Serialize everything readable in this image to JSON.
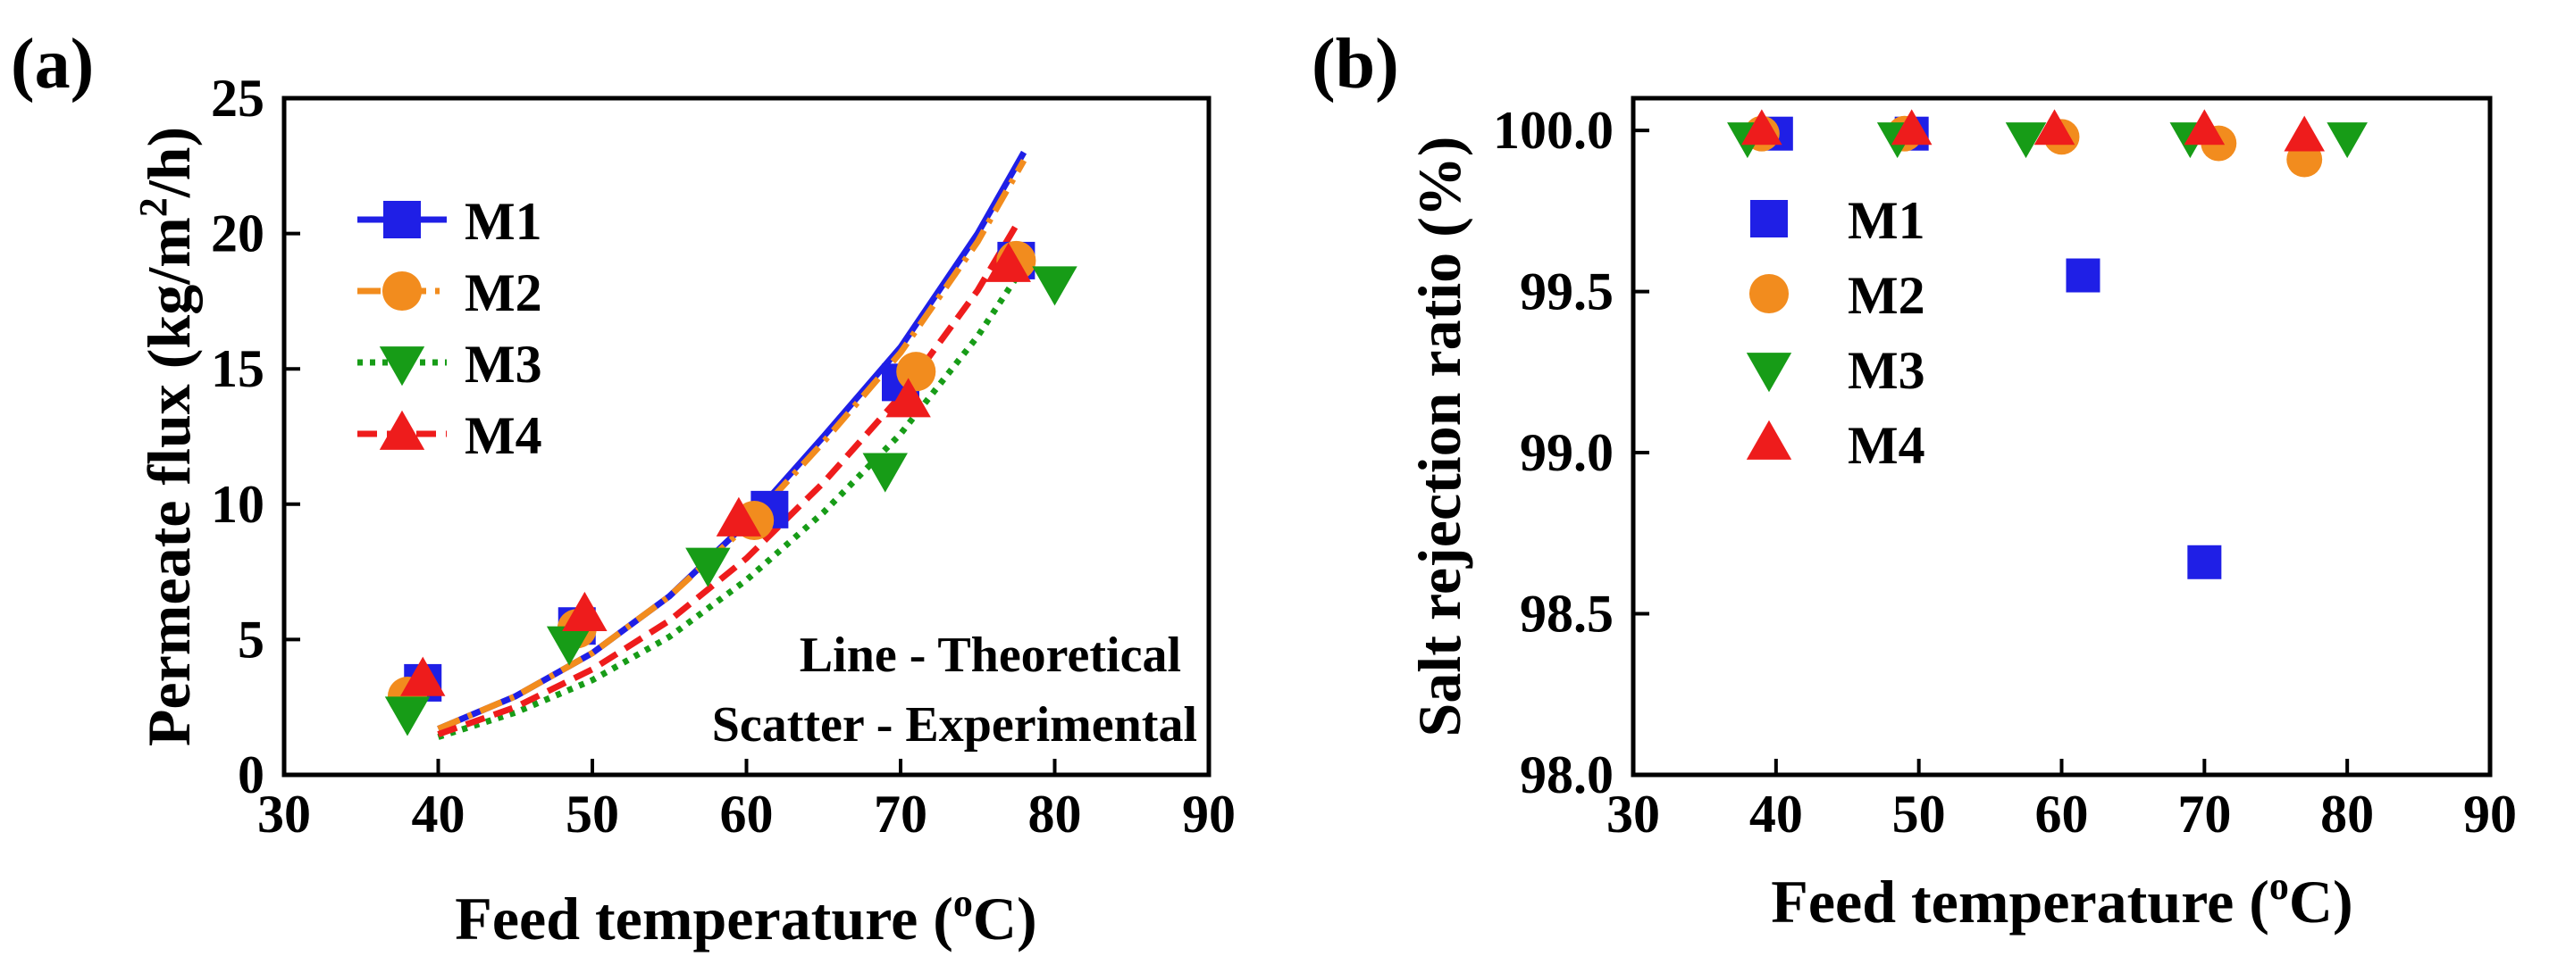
{
  "chart_data": [
    {
      "panel_label": "(a)",
      "type": "line+scatter",
      "title": "",
      "xlabel": "Feed temperature (",
      "xlabel_sup": "o",
      "xlabel_tail": "C)",
      "ylabel": "Permeate flux (kg/m",
      "ylabel_sup": "2",
      "ylabel_tail": "/h)",
      "xlim": [
        30,
        90
      ],
      "ylim": [
        0,
        25
      ],
      "xticks": [
        "30",
        "40",
        "50",
        "60",
        "70",
        "80",
        "90"
      ],
      "yticks": [
        "0",
        "5",
        "10",
        "15",
        "20",
        "25"
      ],
      "grid": false,
      "legend_position": "top-left",
      "annotations": [
        "Line - Theoretical",
        "Scatter - Experimental"
      ],
      "series": [
        {
          "name": "M1",
          "color": "#1f1fe6",
          "marker": "square",
          "line_style": "solid",
          "theory_x": [
            40,
            45,
            50,
            55,
            60,
            65,
            70,
            75,
            78
          ],
          "theory_y": [
            1.7,
            2.9,
            4.5,
            6.6,
            9.3,
            12.5,
            15.8,
            20.0,
            23.0
          ],
          "experimental": [
            [
              39,
              3.4
            ],
            [
              49,
              5.5
            ],
            [
              61.5,
              9.8
            ],
            [
              70,
              14.5
            ],
            [
              77.5,
              19.0
            ]
          ]
        },
        {
          "name": "M2",
          "color": "#f28c1e",
          "marker": "circle",
          "line_style": "dash-dot",
          "theory_x": [
            40,
            45,
            50,
            55,
            60,
            65,
            70,
            75,
            78
          ],
          "theory_y": [
            1.7,
            2.9,
            4.5,
            6.6,
            9.2,
            12.3,
            15.6,
            19.7,
            22.7
          ],
          "experimental": [
            [
              38,
              2.9
            ],
            [
              49,
              5.4
            ],
            [
              60.5,
              9.4
            ],
            [
              71,
              14.9
            ],
            [
              77.5,
              19.0
            ]
          ]
        },
        {
          "name": "M3",
          "color": "#179c17",
          "marker": "triangle-down",
          "line_style": "dotted",
          "theory_x": [
            40,
            45,
            50,
            55,
            60,
            65,
            70,
            75,
            78
          ],
          "theory_y": [
            1.4,
            2.3,
            3.5,
            5.1,
            7.2,
            9.7,
            12.6,
            16.2,
            18.8
          ],
          "experimental": [
            [
              38,
              2.3
            ],
            [
              48.5,
              4.9
            ],
            [
              57.5,
              7.8
            ],
            [
              69,
              11.3
            ],
            [
              80,
              18.2
            ]
          ]
        },
        {
          "name": "M4",
          "color": "#ee1c1c",
          "marker": "triangle-up",
          "line_style": "dashed",
          "theory_x": [
            40,
            45,
            50,
            55,
            60,
            65,
            70,
            75,
            77.5
          ],
          "theory_y": [
            1.5,
            2.5,
            3.9,
            5.7,
            8.0,
            10.8,
            14.0,
            17.9,
            20.3
          ],
          "experimental": [
            [
              39,
              3.5
            ],
            [
              49.5,
              5.9
            ],
            [
              59.5,
              9.4
            ],
            [
              70.5,
              13.8
            ],
            [
              77,
              18.8
            ]
          ]
        }
      ]
    },
    {
      "panel_label": "(b)",
      "type": "scatter",
      "title": "",
      "xlabel": "Feed temperature (",
      "xlabel_sup": "o",
      "xlabel_tail": "C)",
      "ylabel": "Salt rejection ratio (%)",
      "xlim": [
        30,
        90
      ],
      "ylim": [
        98.0,
        100.1
      ],
      "xticks": [
        "30",
        "40",
        "50",
        "60",
        "70",
        "80",
        "90"
      ],
      "yticks": [
        "98.0",
        "98.5",
        "99.0",
        "99.5",
        "100.0"
      ],
      "grid": false,
      "legend_position": "left",
      "series": [
        {
          "name": "M1",
          "color": "#1f1fe6",
          "marker": "square",
          "points": [
            [
              40,
              99.99
            ],
            [
              49.5,
              99.99
            ],
            [
              61.5,
              99.55
            ],
            [
              70,
              98.66
            ]
          ]
        },
        {
          "name": "M2",
          "color": "#f28c1e",
          "marker": "circle",
          "points": [
            [
              39,
              99.99
            ],
            [
              49,
              99.99
            ],
            [
              60,
              99.98
            ],
            [
              71,
              99.96
            ],
            [
              77,
              99.91
            ]
          ]
        },
        {
          "name": "M3",
          "color": "#179c17",
          "marker": "triangle-down",
          "points": [
            [
              38,
              99.98
            ],
            [
              48.5,
              99.98
            ],
            [
              57.5,
              99.98
            ],
            [
              69,
              99.98
            ],
            [
              80,
              99.98
            ]
          ]
        },
        {
          "name": "M4",
          "color": "#ee1c1c",
          "marker": "triangle-up",
          "points": [
            [
              39,
              100.0
            ],
            [
              49.5,
              100.0
            ],
            [
              59.5,
              100.0
            ],
            [
              70,
              100.0
            ],
            [
              77,
              99.98
            ]
          ]
        }
      ]
    }
  ]
}
